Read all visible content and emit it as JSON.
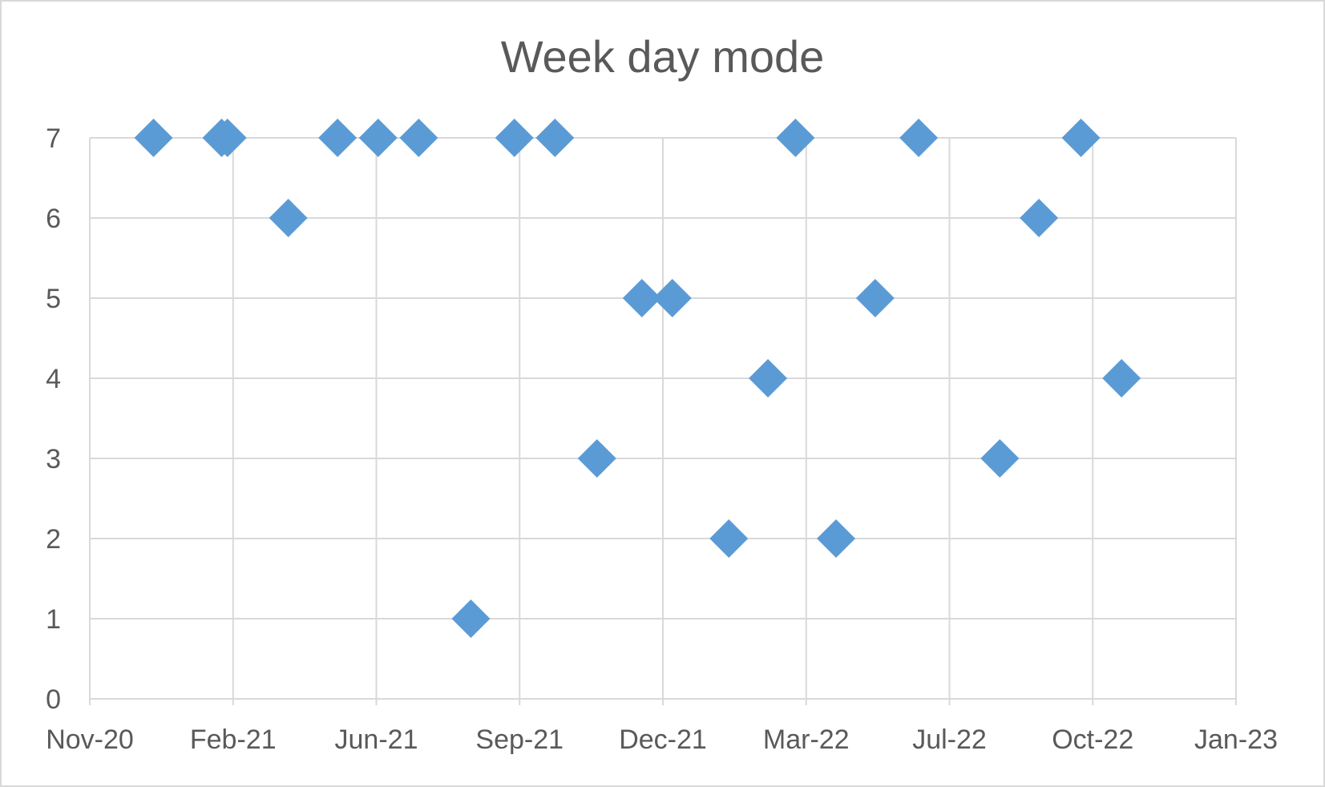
{
  "chart_data": {
    "type": "scatter",
    "title": "Week day mode",
    "xlabel": "",
    "ylabel": "",
    "x_axis": "date",
    "xlim": [
      "2020-11-01",
      "2023-01-01"
    ],
    "ylim": [
      0,
      7
    ],
    "grid": true,
    "legend": "none",
    "marker": "diamond",
    "color": "#5b9bd5",
    "x_ticks": [
      "Nov-20",
      "Feb-21",
      "Jun-21",
      "Sep-21",
      "Dec-21",
      "Mar-22",
      "Jul-22",
      "Oct-22",
      "Jan-23"
    ],
    "y_ticks": [
      "0",
      "1",
      "2",
      "3",
      "4",
      "5",
      "6",
      "7"
    ],
    "points": [
      {
        "x": "2020-12-15",
        "y": 7
      },
      {
        "x": "2021-01-31",
        "y": 7
      },
      {
        "x": "2021-02-04",
        "y": 7
      },
      {
        "x": "2021-03-18",
        "y": 6
      },
      {
        "x": "2021-04-21",
        "y": 7
      },
      {
        "x": "2021-05-19",
        "y": 7
      },
      {
        "x": "2021-06-16",
        "y": 7
      },
      {
        "x": "2021-07-22",
        "y": 1
      },
      {
        "x": "2021-08-21",
        "y": 7
      },
      {
        "x": "2021-09-18",
        "y": 7
      },
      {
        "x": "2021-10-17",
        "y": 3
      },
      {
        "x": "2021-11-17",
        "y": 5
      },
      {
        "x": "2021-12-08",
        "y": 5
      },
      {
        "x": "2022-01-16",
        "y": 2
      },
      {
        "x": "2022-02-12",
        "y": 4
      },
      {
        "x": "2022-03-03",
        "y": 7
      },
      {
        "x": "2022-03-31",
        "y": 2
      },
      {
        "x": "2022-04-27",
        "y": 5
      },
      {
        "x": "2022-05-27",
        "y": 7
      },
      {
        "x": "2022-07-22",
        "y": 3
      },
      {
        "x": "2022-08-18",
        "y": 6
      },
      {
        "x": "2022-09-16",
        "y": 7
      },
      {
        "x": "2022-10-14",
        "y": 4
      }
    ]
  }
}
